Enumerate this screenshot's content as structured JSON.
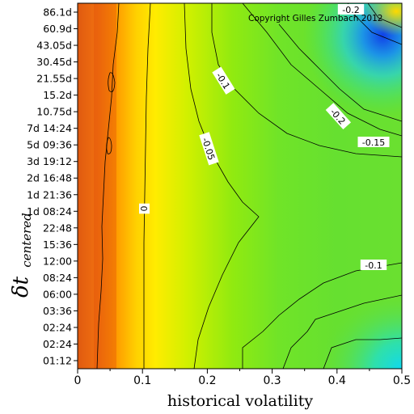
{
  "chart_data": {
    "type": "heatmap",
    "title": "",
    "xlabel": "historical volatility",
    "ylabel": "δt",
    "ylabel_subscript": "centered",
    "x_ticks": [
      "0",
      "0.1",
      "0.2",
      "0.3",
      "0.4",
      "0.5"
    ],
    "xlim": [
      0,
      0.5
    ],
    "y_ticks": [
      "01:12",
      "02:24",
      "02:24",
      "03:36",
      "06:00",
      "08:24",
      "12:00",
      "15:36",
      "22:48",
      "1d 08:24",
      "1d 21:36",
      "2d 16:48",
      "3d 19:12",
      "5d 09:36",
      "7d 14:24",
      "10.75d",
      "15.2d",
      "21.55d",
      "30.45d",
      "43.05d",
      "60.9d",
      "86.1d"
    ],
    "contour_labels": [
      {
        "text": "0",
        "value": 0
      },
      {
        "text": "-0.05",
        "value": -0.05
      },
      {
        "text": "-0.1",
        "value": -0.1
      },
      {
        "text": "-0.1",
        "value": -0.1
      },
      {
        "text": "-0.15",
        "value": -0.15
      },
      {
        "text": "-0.2",
        "value": -0.2
      },
      {
        "text": "-0.2",
        "value": -0.2
      }
    ],
    "colorscale": [
      "#d24a0a",
      "#ff9a00",
      "#ffe000",
      "#bff000",
      "#40e040",
      "#2ee0a6",
      "#18d8e8",
      "#1680f0",
      "#1040e8"
    ],
    "grid": false,
    "legend": "none",
    "annotations": [
      "Copyright Gilles Zumbach 2012"
    ]
  },
  "annotation": {
    "copyright": "Copyright Gilles Zumbach 2012"
  }
}
